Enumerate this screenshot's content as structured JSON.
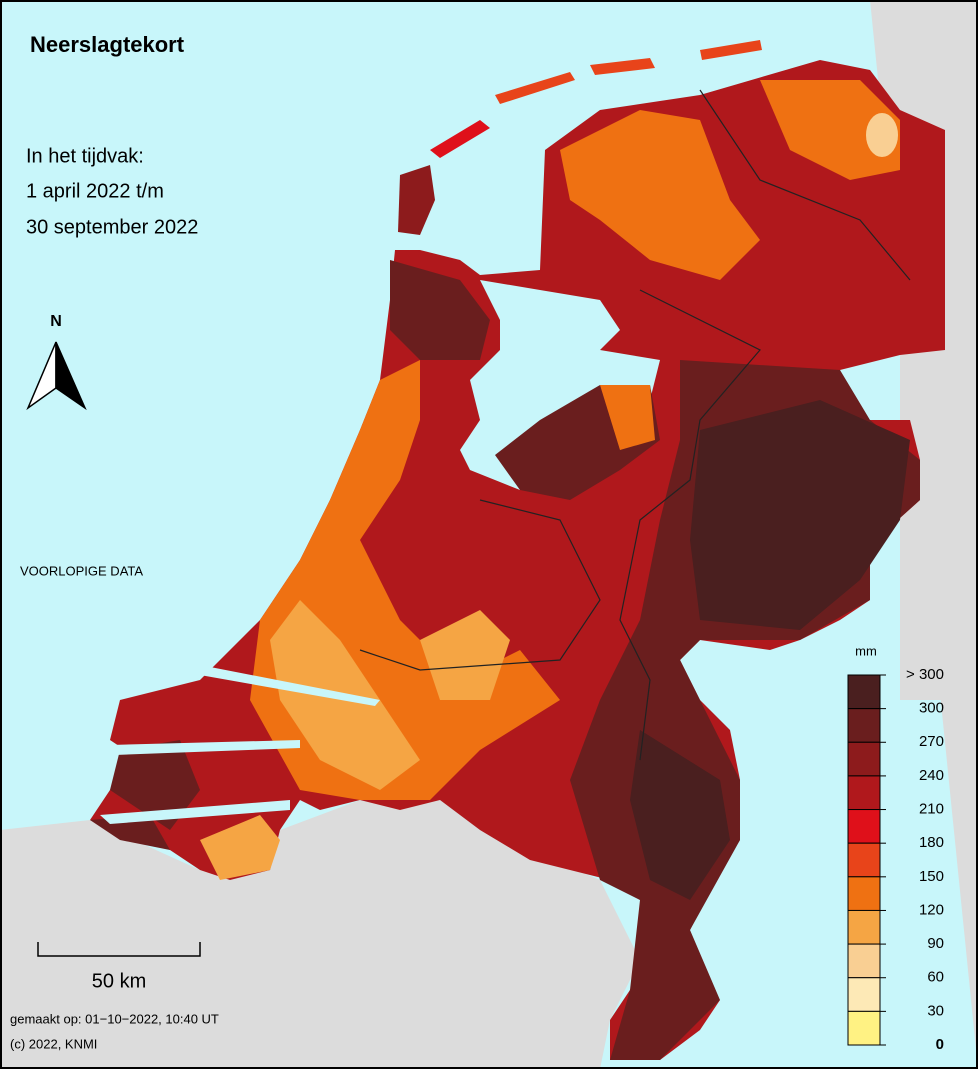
{
  "header": {
    "title": "Neerslagtekort",
    "period": [
      "In het tijdvak:",
      "1 april 2022 t/m",
      "30 september 2022"
    ]
  },
  "north": "N",
  "notice": "VOORLOPIGE DATA",
  "scale": "50 km",
  "footer": {
    "made": "gemaakt op: 01−10−2022, 10:40 UT",
    "copyright": "(c) 2022, KNMI"
  },
  "legend": {
    "unit": "mm",
    "labels": [
      "> 300",
      "300",
      "270",
      "240",
      "210",
      "180",
      "150",
      "120",
      "90",
      "60",
      "30",
      "0"
    ],
    "colors": [
      "#4a1f1f",
      "#6a1e1e",
      "#8d1b1c",
      "#b0181c",
      "#df101a",
      "#e8441a",
      "#ef7112",
      "#f5a544",
      "#f9cf93",
      "#fde9b6",
      "#fff283"
    ]
  }
}
